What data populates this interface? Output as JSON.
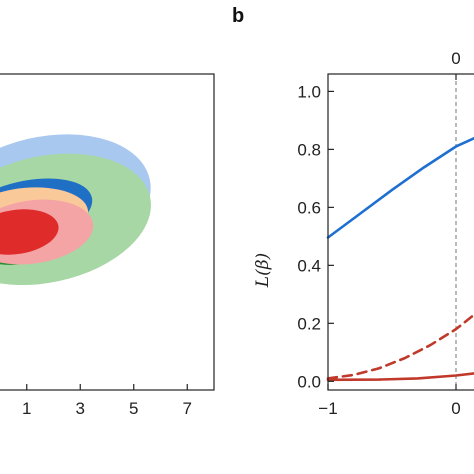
{
  "panel_b_letter": "b",
  "chart_data": [
    {
      "type": "area",
      "panel": "a",
      "xlim": [
        0,
        8
      ],
      "ylim": [
        0,
        1
      ],
      "xticks": [
        1,
        3,
        5,
        7
      ],
      "xtick_labels": [
        "1",
        "3",
        "5",
        "7"
      ],
      "title": "",
      "xlabel": "",
      "ylabel": "",
      "regions": [
        {
          "color": "#a8c8f0",
          "cx": 1.6,
          "cy": 0.59,
          "rx": 4.1,
          "ry": 0.21,
          "rotation_deg": -13
        },
        {
          "color": "#a6d7a4",
          "cx": 1.7,
          "cy": 0.54,
          "rx": 4.0,
          "ry": 0.2,
          "rotation_deg": -12
        },
        {
          "color": "#1f6fc5",
          "cx": 0.9,
          "cy": 0.56,
          "rx": 2.6,
          "ry": 0.1,
          "rotation_deg": -13
        },
        {
          "color": "#2e8b34",
          "cx": 0.8,
          "cy": 0.5,
          "rx": 2.0,
          "ry": 0.1,
          "rotation_deg": -12
        },
        {
          "color": "#fac99a",
          "cx": 1.0,
          "cy": 0.55,
          "rx": 2.3,
          "ry": 0.09,
          "rotation_deg": -5
        },
        {
          "color": "#f4a4a4",
          "cx": 1.2,
          "cy": 0.5,
          "rx": 2.3,
          "ry": 0.1,
          "rotation_deg": -8
        },
        {
          "color": "#e02b2b",
          "cx": 0.6,
          "cy": 0.5,
          "rx": 1.6,
          "ry": 0.07,
          "rotation_deg": -8
        }
      ]
    },
    {
      "type": "line",
      "panel": "b",
      "xlim": [
        -1,
        1.0
      ],
      "ylim": [
        -0.03,
        1.06
      ],
      "xticks": [
        -1,
        0
      ],
      "xtick_labels": [
        "−1",
        "0"
      ],
      "top_ticks": [
        0
      ],
      "top_tick_labels": [
        "0"
      ],
      "yticks": [
        0.0,
        0.2,
        0.4,
        0.6,
        0.8,
        1.0
      ],
      "ytick_labels": [
        "0.0",
        "0.2",
        "0.4",
        "0.6",
        "0.8",
        "1.0"
      ],
      "ylabel_prefix": "L(",
      "ylabel_symbol": "β",
      "ylabel_suffix": ")",
      "vline_x": 0,
      "series": [
        {
          "style": "solid",
          "color": "#1f6fd0",
          "x": [
            -1,
            -0.75,
            -0.5,
            -0.25,
            0,
            0.2
          ],
          "y": [
            0.496,
            0.578,
            0.66,
            0.738,
            0.81,
            0.85
          ]
        },
        {
          "style": "dashed",
          "color": "#c0392b",
          "x": [
            -1,
            -0.8,
            -0.6,
            -0.4,
            -0.2,
            0,
            0.2
          ],
          "y": [
            0.01,
            0.022,
            0.045,
            0.08,
            0.125,
            0.18,
            0.25
          ]
        },
        {
          "style": "solid",
          "color": "#c0392b",
          "x": [
            -1,
            -0.6,
            -0.3,
            0,
            0.2
          ],
          "y": [
            0.005,
            0.006,
            0.01,
            0.02,
            0.03
          ]
        }
      ]
    }
  ]
}
